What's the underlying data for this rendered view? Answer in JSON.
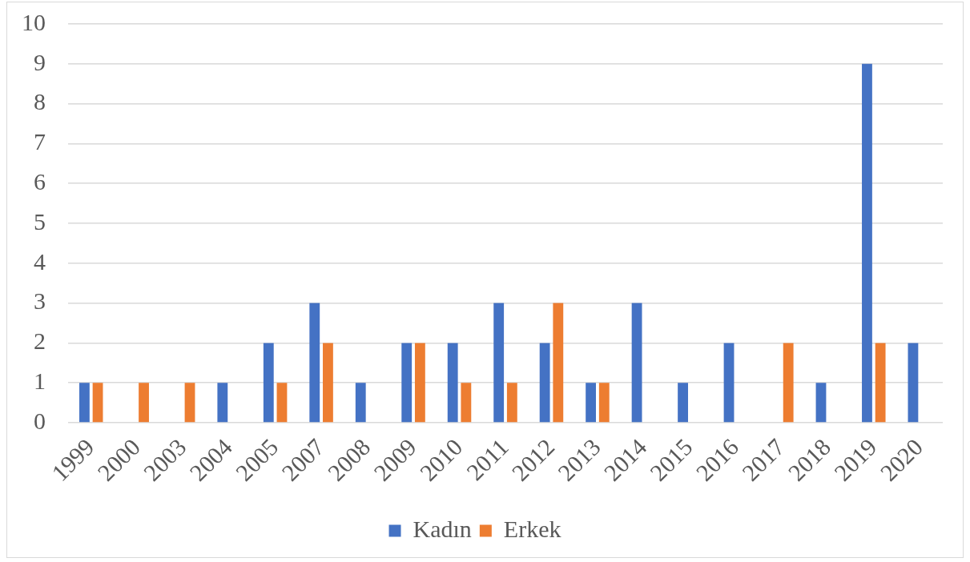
{
  "chart_data": {
    "type": "bar",
    "categories": [
      "1999",
      "2000",
      "2003",
      "2004",
      "2005",
      "2007",
      "2008",
      "2009",
      "2010",
      "2011",
      "2012",
      "2013",
      "2014",
      "2015",
      "2016",
      "2017",
      "2018",
      "2019",
      "2020"
    ],
    "series": [
      {
        "name": "Kadın",
        "color": "#4472c4",
        "values": [
          1,
          null,
          null,
          1,
          2,
          3,
          1,
          2,
          2,
          3,
          2,
          1,
          3,
          1,
          2,
          null,
          1,
          9,
          2
        ]
      },
      {
        "name": "Erkek",
        "color": "#ed7d31",
        "values": [
          1,
          1,
          1,
          null,
          1,
          2,
          null,
          2,
          1,
          1,
          3,
          1,
          null,
          null,
          null,
          2,
          null,
          2,
          null
        ]
      }
    ],
    "ylim": [
      0,
      10
    ],
    "yticks": [
      0,
      1,
      2,
      3,
      4,
      5,
      6,
      7,
      8,
      9,
      10
    ],
    "grid": "y",
    "legend": "bottom"
  }
}
